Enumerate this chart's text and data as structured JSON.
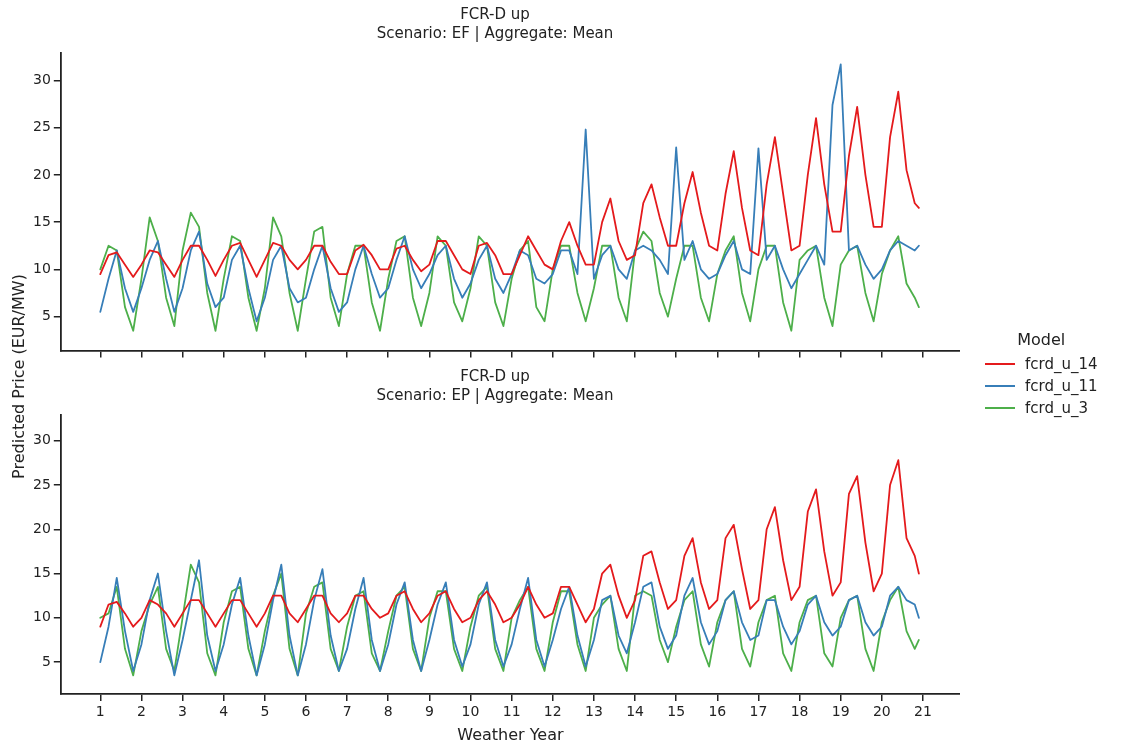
{
  "chart_data": [
    {
      "type": "line",
      "title": "FCR-D up",
      "subtitle": "Scenario: EF | Aggregate: Mean",
      "ylabel": "Predicted Price (EUR/MW)",
      "legend": "right",
      "legend_title": "Model",
      "tick_labels": "y",
      "xlim": [
        0.04,
        21.9
      ],
      "xticks": [
        1,
        2,
        3,
        4,
        5,
        6,
        7,
        8,
        9,
        10,
        11,
        12,
        13,
        14,
        15,
        16,
        17,
        18,
        19,
        20,
        21
      ],
      "ylim": [
        1.4,
        32.9
      ],
      "yticks": [
        5,
        10,
        15,
        20,
        25,
        30
      ],
      "x": [
        1,
        1.2,
        1.4,
        1.6,
        1.8,
        2,
        2.2,
        2.4,
        2.6,
        2.8,
        3,
        3.2,
        3.4,
        3.6,
        3.8,
        4,
        4.2,
        4.4,
        4.6,
        4.8,
        5,
        5.2,
        5.4,
        5.6,
        5.8,
        6,
        6.2,
        6.4,
        6.6,
        6.8,
        7,
        7.2,
        7.4,
        7.6,
        7.8,
        8,
        8.2,
        8.4,
        8.6,
        8.8,
        9,
        9.2,
        9.4,
        9.6,
        9.8,
        10,
        10.2,
        10.4,
        10.6,
        10.8,
        11,
        11.2,
        11.4,
        11.6,
        11.8,
        12,
        12.2,
        12.4,
        12.6,
        12.8,
        13,
        13.2,
        13.4,
        13.6,
        13.8,
        14,
        14.2,
        14.4,
        14.6,
        14.8,
        15,
        15.2,
        15.4,
        15.6,
        15.8,
        16,
        16.2,
        16.4,
        16.6,
        16.8,
        17,
        17.2,
        17.4,
        17.6,
        17.8,
        18,
        18.2,
        18.4,
        18.6,
        18.8,
        19,
        19.2,
        19.4,
        19.6,
        19.8,
        20,
        20.2,
        20.4,
        20.6,
        20.8,
        20.9
      ],
      "series": [
        {
          "name": "fcrd_u_14",
          "color": "#e41a1c",
          "values": [
            9.5,
            11.5,
            11.8,
            10.5,
            9.2,
            10.5,
            12.0,
            11.8,
            10.5,
            9.2,
            11.0,
            12.5,
            12.5,
            11.0,
            9.3,
            11.0,
            12.5,
            12.8,
            11.0,
            9.2,
            11.0,
            12.8,
            12.5,
            11.0,
            10.0,
            11.0,
            12.5,
            12.5,
            10.8,
            9.5,
            9.5,
            12.0,
            12.6,
            11.5,
            10.0,
            10.0,
            12.2,
            12.5,
            11.0,
            9.8,
            10.5,
            13.0,
            13.0,
            11.5,
            10.0,
            9.5,
            12.5,
            12.8,
            11.5,
            9.5,
            9.5,
            11.5,
            13.5,
            12.0,
            10.5,
            10.0,
            13.0,
            15.0,
            12.5,
            10.5,
            10.5,
            15.0,
            17.5,
            13.0,
            11.0,
            11.5,
            17.0,
            19.0,
            15.5,
            12.5,
            12.5,
            17.0,
            20.3,
            16.0,
            12.5,
            12.0,
            18.0,
            22.5,
            16.5,
            12.0,
            11.5,
            19.0,
            24.0,
            18.0,
            12.0,
            12.5,
            20.0,
            26.0,
            19.0,
            14.0,
            14.0,
            22.0,
            27.2,
            20.0,
            14.5,
            14.5,
            24.0,
            28.8,
            20.5,
            17.0,
            16.5
          ]
        },
        {
          "name": "fcrd_u_11",
          "color": "#377eb8",
          "values": [
            5.5,
            9.0,
            12.0,
            8.0,
            5.5,
            8.0,
            11.0,
            13.0,
            9.0,
            5.5,
            8.0,
            12.0,
            14.0,
            8.5,
            6.0,
            7.0,
            11.0,
            12.5,
            8.0,
            4.5,
            7.0,
            11.0,
            12.5,
            8.0,
            6.5,
            7.0,
            10.0,
            12.5,
            8.0,
            5.5,
            6.5,
            10.0,
            12.5,
            9.5,
            7.0,
            8.0,
            11.0,
            13.5,
            10.0,
            8.0,
            9.5,
            11.5,
            12.5,
            9.0,
            7.0,
            8.5,
            11.0,
            12.5,
            9.0,
            7.5,
            9.5,
            12.0,
            11.5,
            9.0,
            8.5,
            9.5,
            12.0,
            12.0,
            9.5,
            24.8,
            9.0,
            11.5,
            12.5,
            10.0,
            9.0,
            12.0,
            12.5,
            12.0,
            11.0,
            9.5,
            22.9,
            11.0,
            13.0,
            10.0,
            9.0,
            9.5,
            11.5,
            13.0,
            10.0,
            9.5,
            22.8,
            11.0,
            12.5,
            10.0,
            8.0,
            9.5,
            11.0,
            12.5,
            10.5,
            27.4,
            31.7,
            12.0,
            12.5,
            10.5,
            9.0,
            10.0,
            12.0,
            13.0,
            12.5,
            12.0,
            12.5
          ]
        },
        {
          "name": "fcrd_u_3",
          "color": "#4daf4a",
          "values": [
            10.0,
            12.5,
            12.0,
            6.0,
            3.5,
            9.0,
            15.5,
            13.0,
            7.0,
            4.0,
            12.0,
            16.0,
            14.5,
            7.5,
            3.5,
            9.0,
            13.5,
            13.0,
            7.0,
            3.5,
            8.0,
            15.5,
            13.5,
            7.5,
            3.5,
            9.0,
            14.0,
            14.5,
            7.0,
            4.0,
            9.5,
            12.5,
            12.5,
            6.5,
            3.5,
            9.0,
            13.0,
            13.5,
            7.0,
            4.0,
            7.5,
            13.5,
            12.5,
            6.5,
            4.5,
            8.0,
            13.5,
            12.5,
            6.5,
            4.0,
            9.0,
            12.0,
            13.0,
            6.0,
            4.5,
            10.0,
            12.5,
            12.5,
            7.5,
            4.5,
            8.0,
            12.5,
            12.5,
            7.0,
            4.5,
            12.0,
            14.0,
            13.0,
            7.5,
            5.0,
            9.0,
            12.5,
            12.5,
            7.0,
            4.5,
            9.5,
            12.0,
            13.5,
            7.5,
            4.5,
            10.0,
            12.5,
            12.5,
            6.5,
            3.5,
            11.0,
            12.0,
            12.5,
            7.0,
            4.0,
            10.5,
            12.0,
            12.5,
            7.5,
            4.5,
            9.5,
            12.0,
            13.5,
            8.5,
            7.0,
            6.0
          ]
        }
      ]
    },
    {
      "type": "line",
      "title": "FCR-D up",
      "subtitle": "Scenario: EP | Aggregate: Mean",
      "xlabel": "Weather Year",
      "xlim": [
        0.04,
        21.9
      ],
      "xticks": [
        1,
        2,
        3,
        4,
        5,
        6,
        7,
        8,
        9,
        10,
        11,
        12,
        13,
        14,
        15,
        16,
        17,
        18,
        19,
        20,
        21
      ],
      "ylim": [
        1.4,
        32.9
      ],
      "yticks": [
        5,
        10,
        15,
        20,
        25,
        30
      ],
      "x": [
        1,
        1.2,
        1.4,
        1.6,
        1.8,
        2,
        2.2,
        2.4,
        2.6,
        2.8,
        3,
        3.2,
        3.4,
        3.6,
        3.8,
        4,
        4.2,
        4.4,
        4.6,
        4.8,
        5,
        5.2,
        5.4,
        5.6,
        5.8,
        6,
        6.2,
        6.4,
        6.6,
        6.8,
        7,
        7.2,
        7.4,
        7.6,
        7.8,
        8,
        8.2,
        8.4,
        8.6,
        8.8,
        9,
        9.2,
        9.4,
        9.6,
        9.8,
        10,
        10.2,
        10.4,
        10.6,
        10.8,
        11,
        11.2,
        11.4,
        11.6,
        11.8,
        12,
        12.2,
        12.4,
        12.6,
        12.8,
        13,
        13.2,
        13.4,
        13.6,
        13.8,
        14,
        14.2,
        14.4,
        14.6,
        14.8,
        15,
        15.2,
        15.4,
        15.6,
        15.8,
        16,
        16.2,
        16.4,
        16.6,
        16.8,
        17,
        17.2,
        17.4,
        17.6,
        17.8,
        18,
        18.2,
        18.4,
        18.6,
        18.8,
        19,
        19.2,
        19.4,
        19.6,
        19.8,
        20,
        20.2,
        20.4,
        20.6,
        20.8,
        20.9
      ],
      "series": [
        {
          "color": "#e41a1c",
          "values": [
            9.0,
            11.5,
            11.8,
            10.5,
            9.0,
            10.0,
            12.0,
            11.5,
            10.5,
            9.0,
            10.5,
            12.0,
            12.0,
            10.5,
            9.0,
            10.5,
            12.0,
            12.0,
            10.5,
            9.0,
            10.5,
            12.5,
            12.5,
            10.5,
            9.5,
            11.0,
            12.5,
            12.5,
            10.5,
            9.5,
            10.5,
            12.5,
            12.5,
            11.0,
            10.0,
            10.5,
            12.5,
            13.0,
            11.0,
            9.5,
            10.5,
            12.5,
            13.0,
            11.0,
            9.5,
            10.0,
            12.0,
            13.0,
            11.5,
            9.5,
            10.0,
            11.5,
            13.5,
            11.5,
            10.0,
            10.5,
            13.5,
            13.5,
            11.5,
            9.5,
            11.0,
            15.0,
            16.0,
            12.5,
            10.0,
            12.0,
            17.0,
            17.5,
            14.0,
            11.0,
            12.0,
            17.0,
            19.0,
            14.0,
            11.0,
            12.0,
            19.0,
            20.5,
            15.5,
            11.0,
            12.0,
            20.0,
            22.5,
            16.5,
            12.0,
            13.5,
            22.0,
            24.5,
            17.5,
            12.5,
            14.0,
            24.0,
            26.0,
            18.5,
            13.0,
            15.0,
            25.0,
            27.8,
            19.0,
            17.0,
            15.0
          ]
        },
        {
          "color": "#377eb8",
          "values": [
            5.0,
            9.0,
            14.5,
            8.5,
            4.0,
            7.0,
            12.0,
            15.0,
            8.5,
            3.5,
            7.5,
            12.0,
            16.5,
            8.0,
            4.0,
            7.0,
            11.5,
            14.5,
            8.0,
            3.5,
            7.0,
            12.0,
            16.0,
            8.0,
            3.5,
            7.0,
            12.0,
            15.5,
            8.0,
            4.0,
            6.5,
            11.0,
            14.5,
            7.5,
            4.0,
            7.0,
            11.5,
            14.0,
            7.5,
            4.0,
            7.5,
            11.5,
            14.0,
            7.5,
            4.5,
            7.0,
            11.5,
            14.0,
            7.5,
            4.5,
            7.0,
            11.0,
            14.5,
            7.5,
            4.5,
            7.5,
            11.0,
            13.5,
            8.0,
            4.5,
            7.5,
            12.0,
            12.5,
            8.0,
            6.0,
            9.5,
            13.5,
            14.0,
            9.0,
            6.5,
            8.0,
            12.5,
            14.5,
            9.5,
            7.0,
            8.5,
            12.0,
            13.0,
            9.5,
            7.5,
            8.0,
            12.0,
            12.0,
            9.0,
            7.0,
            8.5,
            11.5,
            12.5,
            9.5,
            8.0,
            9.0,
            12.0,
            12.5,
            9.5,
            8.0,
            9.0,
            12.5,
            13.5,
            12.0,
            11.5,
            10.0
          ]
        },
        {
          "color": "#4daf4a",
          "values": [
            10.0,
            10.5,
            13.5,
            6.5,
            3.5,
            8.5,
            11.5,
            13.5,
            6.5,
            4.0,
            10.0,
            16.0,
            14.0,
            6.0,
            3.5,
            9.5,
            13.0,
            13.5,
            6.5,
            3.5,
            8.5,
            12.5,
            15.0,
            6.5,
            3.5,
            10.5,
            13.5,
            14.0,
            6.5,
            4.0,
            9.0,
            12.5,
            13.0,
            6.0,
            4.0,
            8.5,
            12.5,
            13.5,
            6.5,
            4.0,
            10.0,
            13.0,
            13.0,
            6.5,
            4.0,
            9.0,
            12.5,
            13.5,
            6.5,
            4.0,
            10.0,
            12.0,
            13.5,
            6.5,
            4.0,
            9.5,
            13.0,
            13.0,
            7.0,
            4.0,
            10.0,
            11.5,
            12.5,
            6.5,
            4.0,
            12.5,
            13.0,
            12.5,
            7.5,
            5.0,
            9.0,
            12.0,
            13.0,
            7.0,
            4.5,
            9.5,
            12.0,
            13.0,
            6.5,
            4.5,
            9.5,
            12.0,
            12.5,
            6.0,
            4.0,
            9.5,
            12.0,
            12.5,
            6.0,
            4.5,
            10.0,
            12.0,
            12.5,
            6.5,
            4.0,
            9.5,
            12.0,
            13.5,
            8.5,
            6.5,
            7.5
          ]
        }
      ]
    }
  ]
}
